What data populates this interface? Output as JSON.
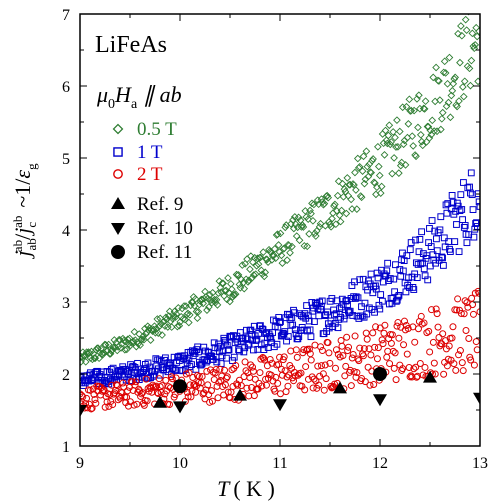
{
  "chart_data": {
    "type": "scatter",
    "title": "LiFeAs",
    "condition": {
      "main": "μ",
      "sub": "0",
      "h": "H",
      "hsub": "a",
      "rel": "∥ ab"
    },
    "xlabel": {
      "main": "T",
      "unit": "( K )"
    },
    "ylabel": {
      "pre": "j",
      "sub1": "ab",
      "sup1": "ab",
      "slash": "/",
      "j2": "j",
      "sub2": "c",
      "sup2": "ab",
      "tilde": "~1/",
      "eps": "ε",
      "epssub": "g"
    },
    "xlim": [
      9,
      13
    ],
    "ylim": [
      1,
      7
    ],
    "xticks": [
      "9",
      "10",
      "11",
      "12",
      "13"
    ],
    "yticks": [
      "1",
      "2",
      "3",
      "4",
      "5",
      "6",
      "7"
    ],
    "legend_position": "left",
    "series": [
      {
        "name": "0.5 T",
        "marker": "diamond-open",
        "color": "#2e7d32",
        "trend": [
          [
            9.0,
            2.2
          ],
          [
            9.5,
            2.45
          ],
          [
            10.0,
            2.8
          ],
          [
            10.5,
            3.2
          ],
          [
            11.0,
            3.75
          ],
          [
            11.5,
            4.3
          ],
          [
            12.0,
            4.9
          ],
          [
            12.5,
            5.7
          ],
          [
            13.0,
            6.7
          ]
        ]
      },
      {
        "name": "1 T",
        "marker": "square-open",
        "color": "#0000cc",
        "trend": [
          [
            9.0,
            1.9
          ],
          [
            9.5,
            2.02
          ],
          [
            10.0,
            2.15
          ],
          [
            10.5,
            2.35
          ],
          [
            11.0,
            2.6
          ],
          [
            11.5,
            2.85
          ],
          [
            12.0,
            3.2
          ],
          [
            12.5,
            3.7
          ],
          [
            13.0,
            4.5
          ]
        ]
      },
      {
        "name": "2 T",
        "marker": "circle-open",
        "color": "#dd0000",
        "trend": [
          [
            9.0,
            1.65
          ],
          [
            9.5,
            1.72
          ],
          [
            10.0,
            1.8
          ],
          [
            10.5,
            1.88
          ],
          [
            11.0,
            2.0
          ],
          [
            11.5,
            2.12
          ],
          [
            12.0,
            2.28
          ],
          [
            12.5,
            2.45
          ],
          [
            13.0,
            2.6
          ]
        ]
      },
      {
        "name": "Ref. 9",
        "marker": "triangle-up-filled",
        "color": "#000000",
        "points": [
          [
            9.8,
            1.6
          ],
          [
            10.6,
            1.7
          ],
          [
            11.6,
            1.8
          ],
          [
            12.5,
            1.95
          ]
        ]
      },
      {
        "name": "Ref. 10",
        "marker": "triangle-down-filled",
        "color": "#000000",
        "points": [
          [
            9.0,
            1.5
          ],
          [
            10.0,
            1.55
          ],
          [
            11.0,
            1.58
          ],
          [
            12.0,
            1.65
          ],
          [
            13.0,
            1.67
          ]
        ]
      },
      {
        "name": "Ref. 11",
        "marker": "circle-filled",
        "color": "#000000",
        "points": [
          [
            10.0,
            1.83
          ],
          [
            12.0,
            2.0
          ]
        ]
      }
    ]
  }
}
